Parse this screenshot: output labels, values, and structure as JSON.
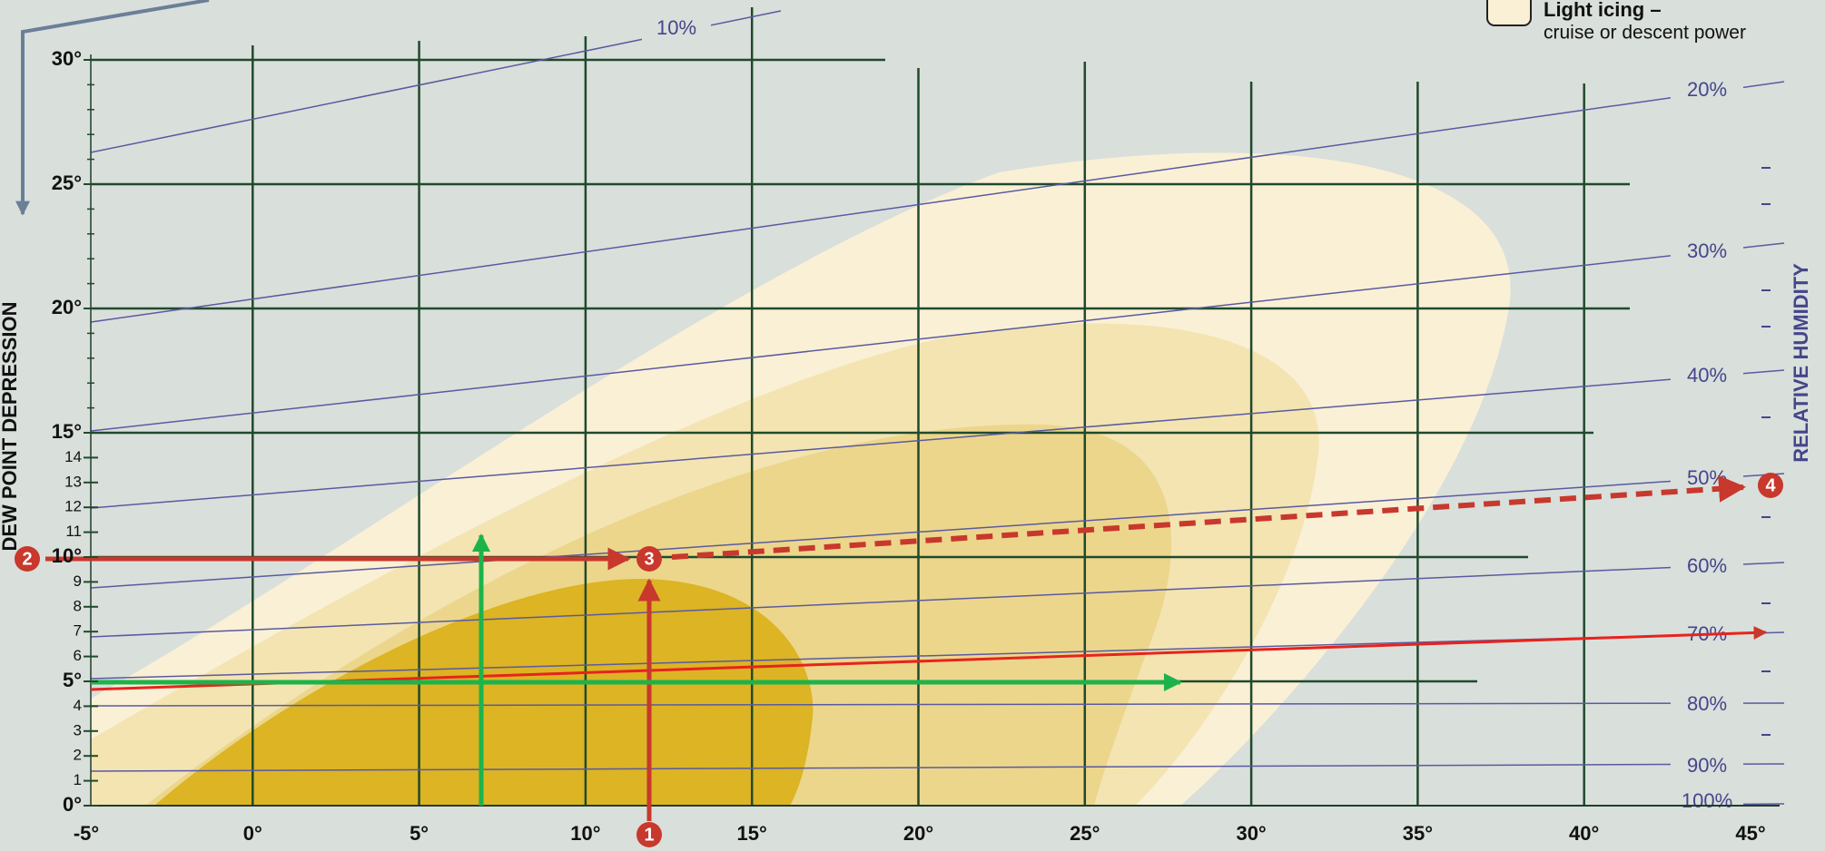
{
  "chart_data": {
    "type": "icing",
    "y_label": "DEW POINT DEPRESSION",
    "y2_label": "RELATIVE HUMIDITY",
    "xlim": [
      -5,
      45
    ],
    "ylim": [
      0,
      30
    ],
    "xticks": [
      {
        "value": -5,
        "label": "-5°"
      },
      {
        "value": 0,
        "label": "0°"
      },
      {
        "value": 5,
        "label": "5°"
      },
      {
        "value": 10,
        "label": "10°"
      },
      {
        "value": 15,
        "label": "15°"
      },
      {
        "value": 20,
        "label": "20°"
      },
      {
        "value": 25,
        "label": "25°"
      },
      {
        "value": 30,
        "label": "30°"
      },
      {
        "value": 35,
        "label": "35°"
      },
      {
        "value": 40,
        "label": "40°"
      },
      {
        "value": 45,
        "label": "45°"
      }
    ],
    "yticks": [
      {
        "value": 0,
        "label": "0°"
      },
      1,
      2,
      3,
      4,
      {
        "value": 5,
        "label": "5°"
      },
      6,
      7,
      8,
      9,
      {
        "value": 10,
        "label": "10°"
      },
      11,
      12,
      13,
      14,
      {
        "value": 15,
        "label": "15°"
      },
      {
        "value": 20,
        "label": "20°"
      },
      {
        "value": 25,
        "label": "25°"
      },
      {
        "value": 30,
        "label": "30°"
      }
    ],
    "rh_labels": [
      "10%",
      "20%",
      "30%",
      "40%",
      "50%",
      "60%",
      "70%",
      "80%",
      "90%",
      "100%"
    ],
    "legend": {
      "label": "Light icing –",
      "sublabel": "cruise or descent power"
    },
    "steps": [
      "1",
      "2",
      "3",
      "4"
    ],
    "grid": true
  }
}
